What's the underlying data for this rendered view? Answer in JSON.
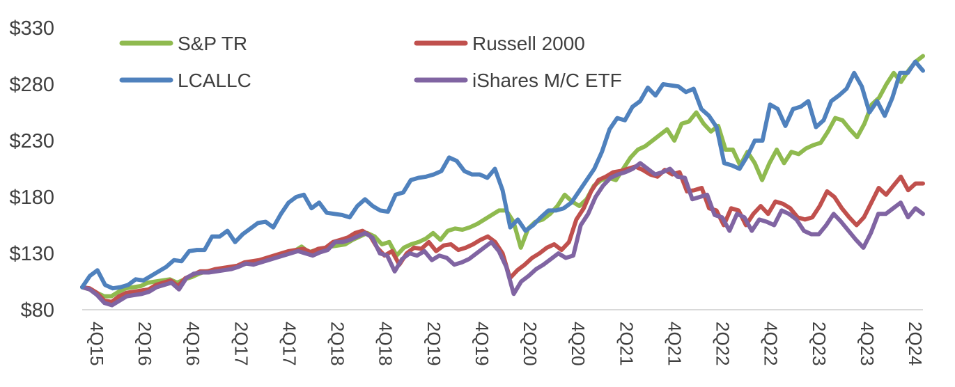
{
  "chart_data": {
    "type": "line",
    "title": "",
    "xlabel": "",
    "ylabel": "",
    "ylim": [
      80,
      330
    ],
    "y_ticks": [
      80,
      130,
      180,
      230,
      280,
      330
    ],
    "y_tick_labels": [
      "$80",
      "$130",
      "$180",
      "$230",
      "$280",
      "$330"
    ],
    "x_ticks": [
      "4Q15",
      "2Q16",
      "4Q16",
      "2Q17",
      "4Q17",
      "2Q18",
      "4Q18",
      "2Q19",
      "4Q19",
      "2Q20",
      "4Q20",
      "2Q21",
      "4Q21",
      "2Q22",
      "4Q22",
      "2Q23",
      "4Q23",
      "2Q24"
    ],
    "grid": false,
    "legend_position": "top-left",
    "series": [
      {
        "name": "S&P TR",
        "color": "#8fba4f",
        "values": [
          100,
          98,
          95,
          92,
          92,
          96,
          99,
          100,
          101,
          104,
          105,
          106,
          107,
          104,
          107,
          109,
          112,
          114,
          115,
          116,
          117,
          118,
          120,
          122,
          123,
          124,
          126,
          128,
          130,
          132,
          136,
          131,
          133,
          134,
          136,
          137,
          138,
          142,
          145,
          148,
          145,
          138,
          140,
          128,
          135,
          138,
          140,
          143,
          148,
          142,
          150,
          152,
          151,
          153,
          156,
          160,
          164,
          168,
          168,
          158,
          135,
          152,
          158,
          160,
          165,
          172,
          182,
          176,
          172,
          178,
          190,
          195,
          197,
          195,
          205,
          215,
          222,
          225,
          230,
          235,
          240,
          230,
          245,
          247,
          255,
          245,
          238,
          243,
          222,
          222,
          208,
          220,
          210,
          195,
          210,
          222,
          210,
          220,
          218,
          223,
          226,
          228,
          238,
          250,
          248,
          240,
          233,
          245,
          262,
          268,
          280,
          290,
          282,
          292,
          300,
          305
        ]
      },
      {
        "name": "Russell 2000",
        "color": "#c0504d",
        "values": [
          100,
          99,
          95,
          88,
          87,
          92,
          95,
          96,
          97,
          98,
          102,
          104,
          106,
          101,
          108,
          111,
          114,
          114,
          116,
          117,
          118,
          119,
          122,
          123,
          124,
          126,
          128,
          130,
          132,
          133,
          134,
          131,
          134,
          135,
          140,
          142,
          144,
          148,
          150,
          146,
          135,
          128,
          132,
          120,
          130,
          135,
          134,
          140,
          132,
          137,
          138,
          133,
          135,
          138,
          142,
          145,
          140,
          130,
          108,
          115,
          120,
          126,
          130,
          135,
          138,
          133,
          140,
          160,
          170,
          185,
          195,
          198,
          202,
          203,
          205,
          207,
          204,
          200,
          198,
          204,
          200,
          202,
          185,
          186,
          188,
          170,
          168,
          155,
          170,
          168,
          155,
          165,
          172,
          165,
          176,
          174,
          170,
          162,
          160,
          162,
          172,
          185,
          180,
          170,
          162,
          155,
          162,
          175,
          188,
          182,
          190,
          198,
          186,
          192,
          192
        ]
      },
      {
        "name": "LCALLC",
        "color": "#4f81bd",
        "values": [
          100,
          110,
          115,
          102,
          99,
          100,
          102,
          107,
          106,
          110,
          114,
          118,
          124,
          123,
          132,
          133,
          133,
          145,
          145,
          150,
          140,
          147,
          152,
          157,
          158,
          153,
          165,
          175,
          180,
          182,
          170,
          175,
          166,
          165,
          164,
          162,
          172,
          178,
          172,
          168,
          167,
          182,
          184,
          195,
          197,
          198,
          200,
          203,
          215,
          212,
          203,
          200,
          200,
          197,
          205,
          186,
          153,
          160,
          150,
          155,
          162,
          168,
          168,
          170,
          175,
          185,
          195,
          205,
          220,
          240,
          250,
          248,
          260,
          265,
          277,
          270,
          280,
          279,
          278,
          273,
          276,
          258,
          252,
          242,
          210,
          208,
          205,
          216,
          230,
          230,
          262,
          258,
          243,
          258,
          260,
          265,
          242,
          248,
          265,
          270,
          276,
          290,
          278,
          255,
          265,
          252,
          268,
          290,
          290,
          300,
          292
        ]
      },
      {
        "name": "iShares M/C ETF",
        "color": "#8064a2",
        "values": [
          100,
          98,
          93,
          86,
          84,
          88,
          92,
          93,
          94,
          96,
          100,
          102,
          104,
          98,
          108,
          112,
          113,
          113,
          114,
          115,
          116,
          118,
          121,
          120,
          122,
          124,
          126,
          128,
          130,
          132,
          130,
          128,
          131,
          133,
          140,
          140,
          142,
          145,
          148,
          144,
          130,
          128,
          114,
          125,
          130,
          128,
          132,
          124,
          128,
          126,
          120,
          122,
          125,
          130,
          135,
          140,
          132,
          118,
          94,
          105,
          110,
          116,
          120,
          125,
          130,
          126,
          128,
          155,
          165,
          180,
          190,
          197,
          200,
          202,
          205,
          210,
          205,
          200,
          202,
          205,
          198,
          197,
          178,
          180,
          182,
          164,
          162,
          150,
          165,
          162,
          150,
          160,
          158,
          155,
          168,
          165,
          160,
          150,
          147,
          147,
          155,
          165,
          158,
          150,
          142,
          135,
          148,
          165,
          165,
          170,
          175,
          162,
          170,
          165
        ]
      }
    ]
  }
}
